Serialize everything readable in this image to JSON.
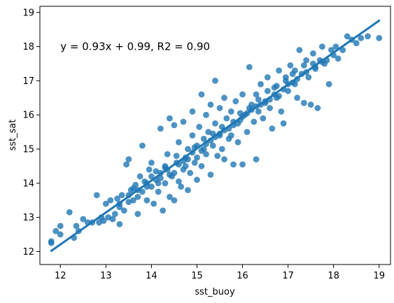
{
  "chart_data": {
    "type": "scatter",
    "xlabel": "sst_buoy",
    "ylabel": "sst_sat",
    "xlim": [
      11.55,
      19.25
    ],
    "ylim": [
      11.62,
      19.18
    ],
    "xticks": [
      12,
      13,
      14,
      15,
      16,
      17,
      18,
      19
    ],
    "yticks": [
      12,
      13,
      14,
      15,
      16,
      17,
      18,
      19
    ],
    "annotation": {
      "text": "y = 0.93x + 0.99,  R2 = 0.90",
      "x": 12.0,
      "y": 18.0
    },
    "regression_line": {
      "x": [
        11.8,
        19.0
      ],
      "y": [
        12.02,
        18.76
      ],
      "slope": 0.93,
      "intercept": 0.99,
      "r2": 0.9
    },
    "colors": {
      "points": "#1f77b4",
      "line": "#1f77b4"
    },
    "points": [
      [
        11.8,
        12.3
      ],
      [
        11.8,
        12.25
      ],
      [
        11.9,
        12.6
      ],
      [
        12.0,
        12.75
      ],
      [
        12.0,
        12.5
      ],
      [
        12.2,
        13.15
      ],
      [
        12.3,
        12.4
      ],
      [
        12.35,
        12.75
      ],
      [
        12.4,
        12.6
      ],
      [
        12.5,
        12.95
      ],
      [
        12.6,
        12.85
      ],
      [
        12.7,
        12.85
      ],
      [
        12.8,
        13.65
      ],
      [
        12.85,
        12.85
      ],
      [
        12.9,
        13.0
      ],
      [
        12.95,
        12.9
      ],
      [
        13.0,
        13.4
      ],
      [
        13.05,
        13.0
      ],
      [
        13.1,
        13.5
      ],
      [
        13.15,
        12.95
      ],
      [
        13.2,
        13.1
      ],
      [
        13.25,
        13.55
      ],
      [
        13.3,
        12.8
      ],
      [
        13.3,
        13.3
      ],
      [
        13.35,
        13.65
      ],
      [
        13.4,
        13.2
      ],
      [
        13.45,
        14.55
      ],
      [
        13.5,
        13.45
      ],
      [
        13.5,
        14.7
      ],
      [
        13.55,
        13.8
      ],
      [
        13.6,
        13.5
      ],
      [
        13.65,
        13.95
      ],
      [
        13.7,
        13.1
      ],
      [
        13.7,
        13.6
      ],
      [
        13.75,
        14.2
      ],
      [
        13.8,
        15.1
      ],
      [
        13.8,
        13.75
      ],
      [
        13.85,
        14.05
      ],
      [
        13.9,
        13.5
      ],
      [
        13.95,
        14.4
      ],
      [
        14.0,
        13.9
      ],
      [
        14.0,
        14.6
      ],
      [
        14.05,
        13.4
      ],
      [
        14.1,
        14.1
      ],
      [
        14.15,
        13.75
      ],
      [
        14.2,
        14.3
      ],
      [
        14.2,
        15.6
      ],
      [
        14.25,
        13.2
      ],
      [
        14.3,
        14.5
      ],
      [
        14.3,
        14.0
      ],
      [
        14.35,
        14.85
      ],
      [
        14.4,
        13.6
      ],
      [
        14.4,
        15.9
      ],
      [
        14.45,
        14.2
      ],
      [
        14.5,
        13.5
      ],
      [
        14.5,
        15.7
      ],
      [
        14.55,
        14.6
      ],
      [
        14.6,
        14.05
      ],
      [
        14.6,
        15.2
      ],
      [
        14.65,
        13.9
      ],
      [
        14.7,
        14.4
      ],
      [
        14.7,
        15.8
      ],
      [
        14.75,
        14.75
      ],
      [
        14.8,
        13.8
      ],
      [
        14.8,
        15.0
      ],
      [
        14.85,
        14.3
      ],
      [
        14.9,
        15.4
      ],
      [
        14.9,
        16.1
      ],
      [
        14.95,
        14.6
      ],
      [
        15.0,
        14.1
      ],
      [
        15.0,
        15.1
      ],
      [
        15.05,
        15.65
      ],
      [
        15.1,
        14.5
      ],
      [
        15.1,
        16.6
      ],
      [
        15.15,
        15.3
      ],
      [
        15.2,
        14.85
      ],
      [
        15.2,
        16.0
      ],
      [
        15.25,
        15.5
      ],
      [
        15.3,
        14.25
      ],
      [
        15.3,
        16.3
      ],
      [
        15.35,
        15.1
      ],
      [
        15.4,
        15.75
      ],
      [
        15.4,
        17.0
      ],
      [
        15.45,
        14.8
      ],
      [
        15.5,
        15.4
      ],
      [
        15.5,
        16.2
      ],
      [
        15.55,
        15.0
      ],
      [
        15.6,
        16.5
      ],
      [
        15.6,
        14.7
      ],
      [
        15.65,
        15.9
      ],
      [
        15.7,
        15.3
      ],
      [
        15.75,
        16.1
      ],
      [
        15.8,
        14.55
      ],
      [
        15.8,
        15.7
      ],
      [
        15.85,
        16.4
      ],
      [
        15.9,
        15.2
      ],
      [
        15.95,
        15.85
      ],
      [
        16.0,
        16.6
      ],
      [
        16.0,
        14.55
      ],
      [
        16.05,
        16.0
      ],
      [
        16.1,
        15.5
      ],
      [
        16.15,
        17.4
      ],
      [
        16.2,
        16.3
      ],
      [
        16.25,
        15.8
      ],
      [
        16.3,
        16.6
      ],
      [
        16.3,
        14.7
      ],
      [
        16.35,
        16.1
      ],
      [
        16.4,
        16.9
      ],
      [
        16.45,
        15.9
      ],
      [
        16.5,
        16.4
      ],
      [
        16.55,
        17.1
      ],
      [
        16.6,
        16.2
      ],
      [
        16.65,
        15.6
      ],
      [
        16.7,
        16.8
      ],
      [
        16.75,
        16.5
      ],
      [
        16.8,
        17.3
      ],
      [
        16.85,
        16.1
      ],
      [
        16.9,
        15.75
      ],
      [
        16.95,
        17.0
      ],
      [
        17.0,
        16.7
      ],
      [
        17.05,
        17.45
      ],
      [
        17.1,
        17.2
      ],
      [
        17.15,
        16.9
      ],
      [
        17.2,
        16.5
      ],
      [
        17.25,
        17.9
      ],
      [
        17.3,
        17.2
      ],
      [
        17.35,
        16.35
      ],
      [
        17.4,
        17.6
      ],
      [
        17.45,
        17.1
      ],
      [
        17.5,
        16.3
      ],
      [
        17.55,
        17.8
      ],
      [
        17.6,
        17.4
      ],
      [
        17.65,
        16.2
      ],
      [
        17.7,
        17.6
      ],
      [
        17.75,
        18.0
      ],
      [
        17.8,
        17.5
      ],
      [
        17.85,
        17.6
      ],
      [
        17.9,
        16.9
      ],
      [
        17.95,
        17.9
      ],
      [
        18.0,
        17.75
      ],
      [
        18.05,
        18.0
      ],
      [
        18.1,
        17.65
      ],
      [
        18.2,
        17.9
      ],
      [
        18.3,
        18.3
      ],
      [
        18.4,
        18.2
      ],
      [
        18.5,
        18.1
      ],
      [
        18.6,
        18.25
      ],
      [
        18.75,
        18.3
      ],
      [
        19.0,
        18.25
      ],
      [
        13.6,
        13.85
      ],
      [
        13.9,
        14.0
      ],
      [
        14.1,
        14.35
      ],
      [
        14.3,
        14.45
      ],
      [
        14.5,
        14.3
      ],
      [
        14.6,
        14.55
      ],
      [
        14.7,
        14.65
      ],
      [
        14.9,
        14.9
      ],
      [
        15.0,
        14.75
      ],
      [
        15.2,
        15.15
      ],
      [
        15.4,
        15.35
      ],
      [
        15.6,
        15.55
      ],
      [
        15.8,
        15.8
      ],
      [
        16.0,
        15.95
      ],
      [
        16.2,
        16.15
      ],
      [
        16.4,
        16.3
      ],
      [
        16.6,
        16.45
      ],
      [
        16.8,
        16.55
      ],
      [
        17.0,
        16.9
      ],
      [
        17.2,
        17.05
      ],
      [
        17.4,
        17.25
      ],
      [
        17.6,
        17.35
      ],
      [
        14.2,
        14.15
      ],
      [
        14.4,
        14.25
      ],
      [
        14.8,
        14.7
      ],
      [
        15.1,
        14.95
      ],
      [
        15.3,
        15.25
      ],
      [
        15.5,
        15.45
      ],
      [
        15.7,
        15.6
      ],
      [
        15.9,
        15.75
      ],
      [
        16.1,
        16.05
      ],
      [
        16.3,
        16.25
      ],
      [
        16.5,
        16.35
      ],
      [
        16.7,
        16.6
      ],
      [
        16.9,
        16.75
      ],
      [
        17.1,
        16.95
      ],
      [
        13.3,
        13.4
      ],
      [
        13.5,
        13.65
      ],
      [
        13.7,
        13.8
      ],
      [
        13.9,
        13.9
      ],
      [
        14.0,
        14.2
      ],
      [
        14.15,
        14.0
      ],
      [
        14.35,
        14.4
      ],
      [
        14.55,
        14.8
      ],
      [
        14.75,
        14.5
      ],
      [
        14.95,
        15.05
      ],
      [
        15.15,
        15.0
      ],
      [
        15.35,
        15.45
      ],
      [
        15.55,
        15.65
      ],
      [
        15.75,
        15.4
      ],
      [
        15.95,
        16.05
      ],
      [
        16.15,
        16.2
      ],
      [
        16.35,
        16.45
      ],
      [
        16.55,
        16.7
      ],
      [
        16.75,
        16.85
      ],
      [
        16.95,
        17.1
      ],
      [
        17.15,
        17.3
      ],
      [
        17.35,
        17.45
      ],
      [
        17.55,
        17.5
      ],
      [
        17.75,
        17.55
      ]
    ]
  }
}
